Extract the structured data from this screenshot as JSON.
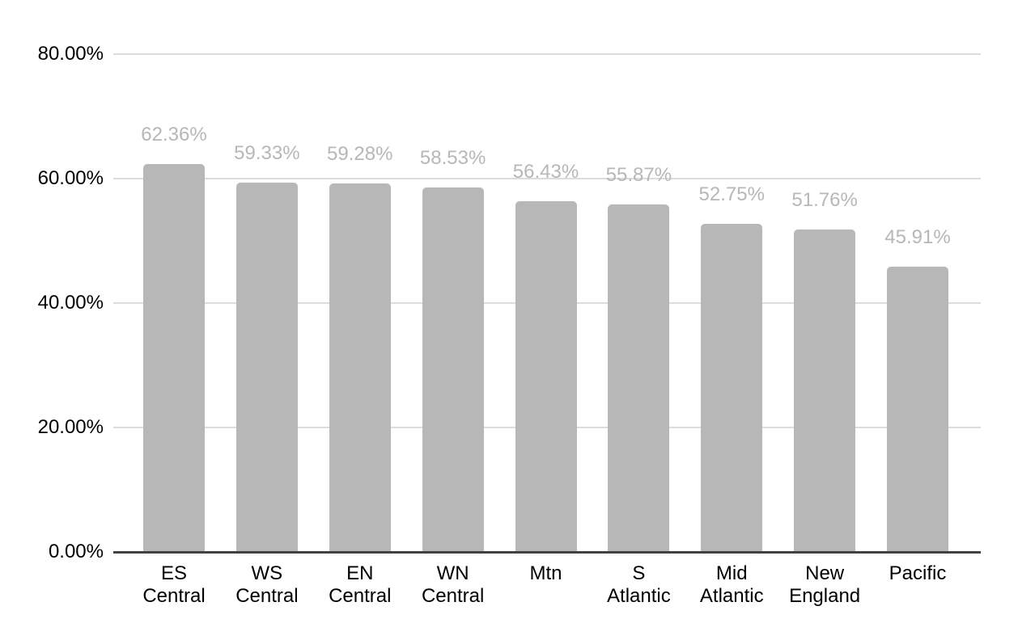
{
  "chart_data": {
    "type": "bar",
    "title": "",
    "xlabel": "",
    "ylabel": "",
    "categories": [
      "ES Central",
      "WS Central",
      "EN Central",
      "WN Central",
      "Mtn",
      "S Atlantic",
      "Mid Atlantic",
      "New England",
      "Pacific"
    ],
    "values": [
      62.36,
      59.33,
      59.28,
      58.53,
      56.43,
      55.87,
      52.75,
      51.76,
      45.91
    ],
    "value_labels": [
      "62.36%",
      "59.33%",
      "59.28%",
      "58.53%",
      "56.43%",
      "55.87%",
      "52.75%",
      "51.76%",
      "45.91%"
    ],
    "ylim": [
      0,
      80
    ],
    "y_ticks": [
      {
        "value": 0,
        "label": "0.00%"
      },
      {
        "value": 20,
        "label": "20.00%"
      },
      {
        "value": 40,
        "label": "40.00%"
      },
      {
        "value": 60,
        "label": "60.00%"
      },
      {
        "value": 80,
        "label": "80.00%"
      }
    ],
    "grid": true,
    "legend_position": "none",
    "colors": {
      "bar": "#b7b7b7",
      "data_label": "#b7b7b7",
      "axis_text": "#000000",
      "gridline": "#dcdcdc",
      "baseline": "#424242",
      "background": "#ffffff"
    }
  }
}
